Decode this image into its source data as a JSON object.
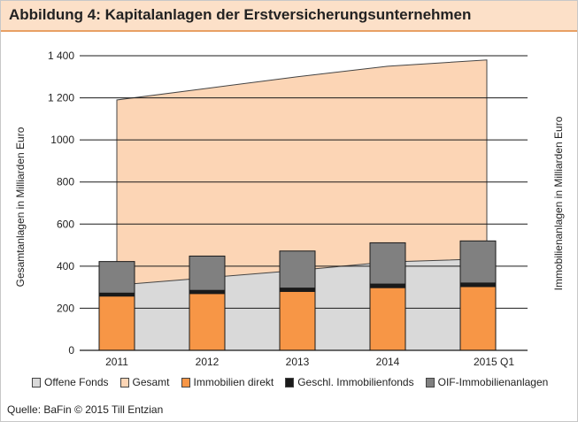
{
  "title": "Abbildung 4: Kapitalanlagen der Erstversicherungsunternehmen",
  "source": "Quelle: BaFin © 2015 Till Entzian",
  "colors": {
    "offene_fonds": "#d9d9d9",
    "gesamt": "#fcd5b5",
    "immobilien_direkt": "#f79646",
    "geschl_fonds": "#1a1a1a",
    "oif": "#808080"
  },
  "chart_data": {
    "type": "bar",
    "categories": [
      "2011",
      "2012",
      "2013",
      "2014",
      "2015 Q1"
    ],
    "ylabel": "Gesamtanlagen in Milliarden Euro",
    "ylabel_right": "Immobilienanlagen in Milliarden Euro",
    "ylim": [
      0,
      1400
    ],
    "yticks": [
      0,
      200,
      400,
      600,
      800,
      1000,
      1200,
      1400
    ],
    "ytick_labels": [
      "0",
      "200",
      "400",
      "600",
      "800",
      "1000",
      "1 200",
      "1 400"
    ],
    "grid": true,
    "legend_position": "bottom",
    "series": [
      {
        "name": "Offene Fonds",
        "kind": "area",
        "values": [
          310,
          345,
          380,
          420,
          435
        ]
      },
      {
        "name": "Gesamt",
        "kind": "area",
        "values": [
          1190,
          1245,
          1300,
          1350,
          1380
        ]
      },
      {
        "name": "Immobilien direkt",
        "kind": "stacked-bar",
        "values": [
          258,
          270,
          280,
          298,
          303
        ]
      },
      {
        "name": "Geschl. Immobilienfonds",
        "kind": "stacked-bar",
        "values": [
          14,
          15,
          16,
          17,
          17
        ]
      },
      {
        "name": "OIF-Immobilienanlagen",
        "kind": "stacked-bar",
        "values": [
          150,
          163,
          176,
          196,
          200
        ]
      }
    ]
  }
}
